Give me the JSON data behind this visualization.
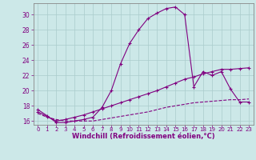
{
  "xlabel": "Windchill (Refroidissement éolien,°C)",
  "background_color": "#cce8e8",
  "line_color": "#800080",
  "grid_color": "#aacccc",
  "xlim": [
    -0.5,
    23.5
  ],
  "ylim": [
    15.5,
    31.5
  ],
  "yticks": [
    16,
    18,
    20,
    22,
    24,
    26,
    28,
    30
  ],
  "xticks": [
    0,
    1,
    2,
    3,
    4,
    5,
    6,
    7,
    8,
    9,
    10,
    11,
    12,
    13,
    14,
    15,
    16,
    17,
    18,
    19,
    20,
    21,
    22,
    23
  ],
  "series1_x": [
    0,
    1,
    2,
    3,
    4,
    5,
    6,
    7,
    8,
    9,
    10,
    11,
    12,
    13,
    14,
    15,
    16,
    17,
    18,
    19,
    20,
    21,
    22,
    23
  ],
  "series1_y": [
    17.5,
    16.7,
    15.8,
    15.8,
    16.0,
    16.2,
    16.5,
    17.8,
    20.0,
    23.5,
    26.2,
    28.0,
    29.5,
    30.2,
    30.8,
    31.0,
    30.0,
    20.5,
    22.5,
    22.0,
    22.5,
    20.2,
    18.5,
    18.5
  ],
  "series2_x": [
    0,
    1,
    2,
    3,
    4,
    5,
    6,
    7,
    8,
    9,
    10,
    11,
    12,
    13,
    14,
    15,
    16,
    17,
    18,
    19,
    20,
    21,
    22,
    23
  ],
  "series2_y": [
    17.2,
    16.6,
    16.0,
    16.2,
    16.5,
    16.8,
    17.2,
    17.6,
    18.0,
    18.4,
    18.8,
    19.2,
    19.6,
    20.0,
    20.5,
    21.0,
    21.5,
    21.8,
    22.2,
    22.5,
    22.8,
    22.8,
    22.9,
    23.0
  ],
  "series3_x": [
    0,
    1,
    2,
    3,
    4,
    5,
    6,
    7,
    8,
    9,
    10,
    11,
    12,
    13,
    14,
    15,
    16,
    17,
    18,
    19,
    20,
    21,
    22,
    23
  ],
  "series3_y": [
    17.0,
    16.5,
    16.2,
    16.0,
    16.0,
    16.0,
    16.0,
    16.2,
    16.4,
    16.6,
    16.8,
    17.0,
    17.2,
    17.5,
    17.8,
    18.0,
    18.2,
    18.4,
    18.5,
    18.6,
    18.7,
    18.8,
    18.8,
    18.9
  ]
}
